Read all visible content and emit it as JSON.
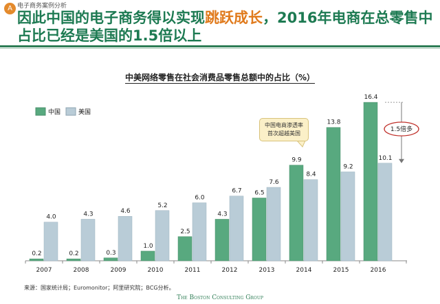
{
  "header": {
    "badge": "A",
    "section": "电子商务案例分析",
    "title_part1": "因此中国的电子商务得以实现",
    "title_highlight": "跳跃成长",
    "title_part2": "，2016年电商在总零售中占比已经是美国的1.5倍以上"
  },
  "colors": {
    "china": "#58a97f",
    "us": "#b9ccd7",
    "title": "#1d7a52",
    "highlight": "#e07a1c"
  },
  "chart_data": {
    "type": "bar",
    "title": "中美网络零售在社会消费品零售总额中的占比（%）",
    "categories": [
      "2007",
      "2008",
      "2009",
      "2010",
      "2011",
      "2012",
      "2013",
      "2014",
      "2015",
      "2016"
    ],
    "series": [
      {
        "name": "中国",
        "values": [
          0.2,
          0.2,
          0.3,
          1.0,
          2.5,
          4.3,
          6.5,
          9.9,
          13.8,
          16.4
        ]
      },
      {
        "name": "美国",
        "values": [
          4.0,
          4.3,
          4.6,
          5.2,
          6.0,
          6.7,
          7.6,
          8.4,
          9.2,
          10.1
        ]
      }
    ],
    "legend": "top-left",
    "grid": false,
    "annotations": {
      "callout_line1": "中国电商渗透率",
      "callout_line2": "首次超越美国",
      "ratio": "1.5倍多"
    }
  },
  "footer": {
    "source": "来源：国家统计局；Euromonitor；阿里研究院；BCG分析。",
    "logo": "The Boston Consulting Group"
  }
}
